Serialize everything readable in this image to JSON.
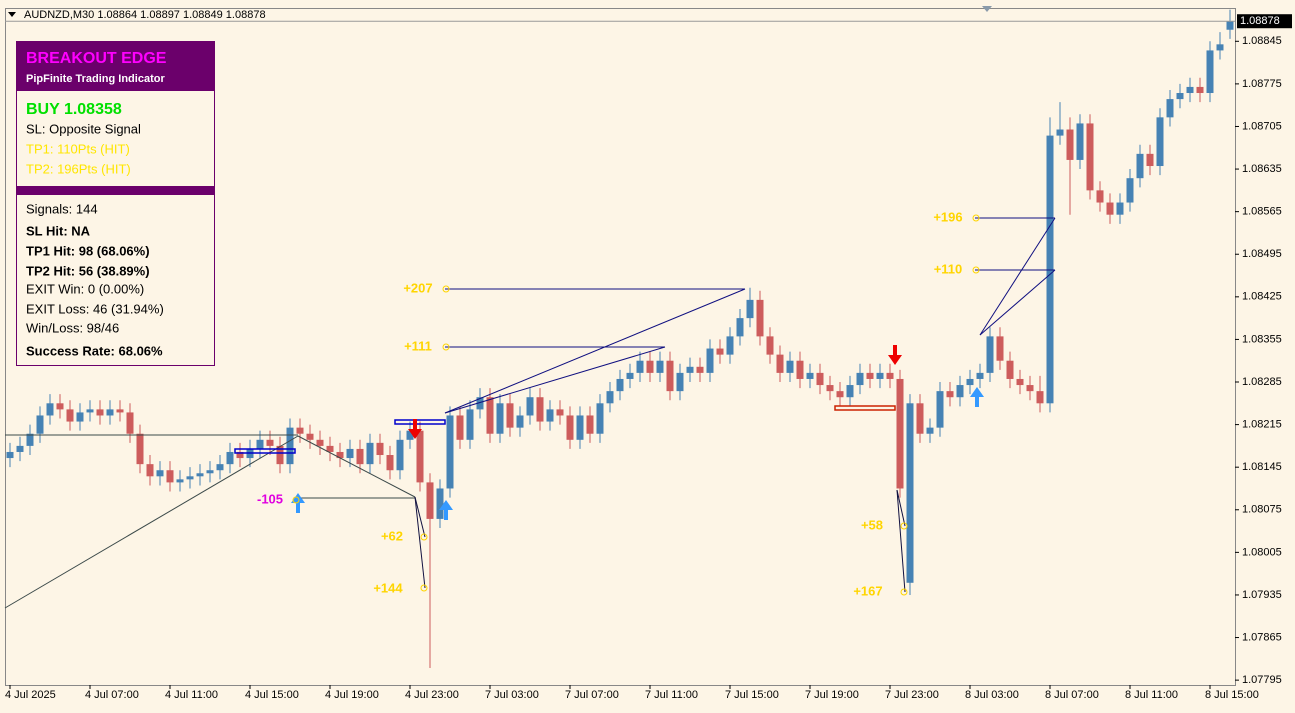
{
  "chart_data": {
    "type": "candlestick",
    "title": "AUDNZD,M30  1.08864 1.08897 1.08849 1.08878",
    "last_price": 1.08878,
    "up_color": "#4682b4",
    "down_color": "#cd5c5c",
    "ylim": [
      1.07787,
      1.0888
    ],
    "yticks": [
      1.08845,
      1.08775,
      1.08705,
      1.08635,
      1.08565,
      1.08495,
      1.08425,
      1.08355,
      1.08285,
      1.08215,
      1.08145,
      1.08075,
      1.08005,
      1.07935,
      1.07865,
      1.07795
    ],
    "categories": [
      "4 Jul 2025",
      null,
      null,
      null,
      null,
      null,
      null,
      null,
      "4 Jul 07:00",
      null,
      null,
      null,
      null,
      null,
      null,
      null,
      "4 Jul 11:00",
      null,
      null,
      null,
      null,
      null,
      null,
      null,
      "4 Jul 15:00",
      null,
      null,
      null,
      null,
      null,
      null,
      null,
      "4 Jul 19:00",
      null,
      null,
      null,
      null,
      null,
      null,
      null,
      "4 Jul 23:00",
      null,
      null,
      null,
      null,
      null,
      null,
      null,
      "7 Jul 03:00",
      null,
      null,
      null,
      null,
      null,
      null,
      null,
      "7 Jul 07:00",
      null,
      null,
      null,
      null,
      null,
      null,
      null,
      "7 Jul 11:00",
      null,
      null,
      null,
      null,
      null,
      null,
      null,
      "7 Jul 15:00",
      null,
      null,
      null,
      null,
      null,
      null,
      null,
      "7 Jul 19:00",
      null,
      null,
      null,
      null,
      null,
      null,
      null,
      "7 Jul 23:00",
      null,
      null,
      null,
      null,
      null,
      null,
      null,
      "8 Jul 03:00",
      null,
      null,
      null,
      null,
      null,
      null,
      null,
      "8 Jul 07:00",
      null,
      null,
      null,
      null,
      null,
      null,
      null,
      "8 Jul 11:00",
      null,
      null,
      null,
      null,
      null,
      null,
      null,
      "8 Jul 15:00",
      null,
      null
    ],
    "ohlc": [
      [
        1.0816,
        1.08185,
        1.08145,
        1.0817
      ],
      [
        1.0817,
        1.08195,
        1.08155,
        1.0818
      ],
      [
        1.0818,
        1.08215,
        1.08165,
        1.082
      ],
      [
        1.082,
        1.08245,
        1.08185,
        1.0823
      ],
      [
        1.0823,
        1.08265,
        1.08215,
        1.0825
      ],
      [
        1.0825,
        1.08265,
        1.08225,
        1.0824
      ],
      [
        1.0824,
        1.08255,
        1.08205,
        1.0822
      ],
      [
        1.0822,
        1.0825,
        1.08205,
        1.08235
      ],
      [
        1.08235,
        1.08255,
        1.0822,
        1.0824
      ],
      [
        1.0824,
        1.08255,
        1.08215,
        1.0823
      ],
      [
        1.0823,
        1.08255,
        1.08215,
        1.0824
      ],
      [
        1.0824,
        1.08255,
        1.0822,
        1.08235
      ],
      [
        1.08235,
        1.0825,
        1.08185,
        1.082
      ],
      [
        1.082,
        1.08215,
        1.08135,
        1.0815
      ],
      [
        1.0815,
        1.08165,
        1.08115,
        1.0813
      ],
      [
        1.0813,
        1.08155,
        1.08115,
        1.0814
      ],
      [
        1.0814,
        1.08155,
        1.08105,
        1.0812
      ],
      [
        1.0812,
        1.0814,
        1.08105,
        1.08125
      ],
      [
        1.08125,
        1.08145,
        1.0811,
        1.0813
      ],
      [
        1.0813,
        1.0815,
        1.08115,
        1.08135
      ],
      [
        1.08135,
        1.08155,
        1.0812,
        1.0814
      ],
      [
        1.0814,
        1.08165,
        1.08125,
        1.0815
      ],
      [
        1.0815,
        1.08185,
        1.08135,
        1.0817
      ],
      [
        1.0817,
        1.08185,
        1.08145,
        1.0816
      ],
      [
        1.0816,
        1.0819,
        1.08145,
        1.08175
      ],
      [
        1.08175,
        1.08205,
        1.0816,
        1.0819
      ],
      [
        1.0819,
        1.08205,
        1.08165,
        1.0818
      ],
      [
        1.0818,
        1.08195,
        1.08135,
        1.0815
      ],
      [
        1.0815,
        1.08225,
        1.08135,
        1.0821
      ],
      [
        1.0821,
        1.08225,
        1.08185,
        1.082
      ],
      [
        1.082,
        1.08215,
        1.08175,
        1.0819
      ],
      [
        1.0819,
        1.08205,
        1.08165,
        1.0818
      ],
      [
        1.0818,
        1.08195,
        1.08155,
        1.0817
      ],
      [
        1.0817,
        1.08185,
        1.08145,
        1.0816
      ],
      [
        1.0816,
        1.0819,
        1.08145,
        1.08175
      ],
      [
        1.08175,
        1.0819,
        1.08135,
        1.0815
      ],
      [
        1.0815,
        1.082,
        1.08135,
        1.08185
      ],
      [
        1.08185,
        1.082,
        1.0815,
        1.08165
      ],
      [
        1.08165,
        1.0818,
        1.08125,
        1.0814
      ],
      [
        1.0814,
        1.08205,
        1.08125,
        1.0819
      ],
      [
        1.0819,
        1.0822,
        1.08175,
        1.08205
      ],
      [
        1.08205,
        1.0822,
        1.08105,
        1.0812
      ],
      [
        1.0812,
        1.08135,
        1.07815,
        1.0806
      ],
      [
        1.0806,
        1.08125,
        1.08045,
        1.0811
      ],
      [
        1.0811,
        1.08245,
        1.08095,
        1.0823
      ],
      [
        1.0823,
        1.08245,
        1.08175,
        1.0819
      ],
      [
        1.0819,
        1.08255,
        1.08175,
        1.0824
      ],
      [
        1.0824,
        1.08275,
        1.08225,
        1.0826
      ],
      [
        1.0826,
        1.08275,
        1.08185,
        1.082
      ],
      [
        1.082,
        1.08265,
        1.08185,
        1.0825
      ],
      [
        1.0825,
        1.08265,
        1.08195,
        1.0821
      ],
      [
        1.0821,
        1.08245,
        1.08195,
        1.0823
      ],
      [
        1.0823,
        1.08275,
        1.08215,
        1.0826
      ],
      [
        1.0826,
        1.08275,
        1.08205,
        1.0822
      ],
      [
        1.0822,
        1.08255,
        1.08205,
        1.0824
      ],
      [
        1.0824,
        1.08255,
        1.08215,
        1.0823
      ],
      [
        1.0823,
        1.08245,
        1.08175,
        1.0819
      ],
      [
        1.0819,
        1.08245,
        1.08175,
        1.0823
      ],
      [
        1.0823,
        1.08245,
        1.08185,
        1.082
      ],
      [
        1.082,
        1.08265,
        1.08185,
        1.0825
      ],
      [
        1.0825,
        1.08285,
        1.08235,
        1.0827
      ],
      [
        1.0827,
        1.08305,
        1.08255,
        1.0829
      ],
      [
        1.0829,
        1.08315,
        1.08275,
        1.083
      ],
      [
        1.083,
        1.08335,
        1.08285,
        1.0832
      ],
      [
        1.0832,
        1.08335,
        1.08285,
        1.083
      ],
      [
        1.083,
        1.08335,
        1.08285,
        1.0832
      ],
      [
        1.0832,
        1.08335,
        1.08255,
        1.0827
      ],
      [
        1.0827,
        1.08315,
        1.08255,
        1.083
      ],
      [
        1.083,
        1.08325,
        1.08285,
        1.0831
      ],
      [
        1.0831,
        1.08325,
        1.08285,
        1.083
      ],
      [
        1.083,
        1.08355,
        1.08285,
        1.0834
      ],
      [
        1.0834,
        1.08355,
        1.08315,
        1.0833
      ],
      [
        1.0833,
        1.08375,
        1.08315,
        1.0836
      ],
      [
        1.0836,
        1.08405,
        1.08345,
        1.0839
      ],
      [
        1.0839,
        1.0844,
        1.08375,
        1.0842
      ],
      [
        1.0842,
        1.08435,
        1.08345,
        1.0836
      ],
      [
        1.0836,
        1.08375,
        1.08315,
        1.0833
      ],
      [
        1.0833,
        1.08345,
        1.08285,
        1.083
      ],
      [
        1.083,
        1.08335,
        1.08285,
        1.0832
      ],
      [
        1.0832,
        1.08335,
        1.08275,
        1.0829
      ],
      [
        1.0829,
        1.08315,
        1.08275,
        1.083
      ],
      [
        1.083,
        1.08315,
        1.08265,
        1.0828
      ],
      [
        1.0828,
        1.08295,
        1.08255,
        1.0827
      ],
      [
        1.0827,
        1.08285,
        1.08245,
        1.0826
      ],
      [
        1.0826,
        1.08295,
        1.08245,
        1.0828
      ],
      [
        1.0828,
        1.08315,
        1.08265,
        1.083
      ],
      [
        1.083,
        1.08315,
        1.08275,
        1.0829
      ],
      [
        1.0829,
        1.08315,
        1.08275,
        1.083
      ],
      [
        1.083,
        1.08315,
        1.08275,
        1.0829
      ],
      [
        1.0829,
        1.08305,
        1.08095,
        1.0811
      ],
      [
        1.07955,
        1.08265,
        1.07935,
        1.0825
      ],
      [
        1.0825,
        1.08265,
        1.08185,
        1.082
      ],
      [
        1.082,
        1.08225,
        1.08185,
        1.0821
      ],
      [
        1.0821,
        1.08285,
        1.08195,
        1.0827
      ],
      [
        1.0827,
        1.08285,
        1.08245,
        1.0826
      ],
      [
        1.0826,
        1.08295,
        1.08245,
        1.0828
      ],
      [
        1.0828,
        1.08305,
        1.08265,
        1.0829
      ],
      [
        1.0829,
        1.08315,
        1.08275,
        1.083
      ],
      [
        1.083,
        1.08375,
        1.08285,
        1.0836
      ],
      [
        1.0836,
        1.08375,
        1.08305,
        1.0832
      ],
      [
        1.0832,
        1.08335,
        1.08275,
        1.0829
      ],
      [
        1.0829,
        1.08305,
        1.08265,
        1.0828
      ],
      [
        1.0828,
        1.08295,
        1.08255,
        1.0827
      ],
      [
        1.0827,
        1.08295,
        1.08235,
        1.0825
      ],
      [
        1.0825,
        1.0872,
        1.08235,
        1.0869
      ],
      [
        1.0869,
        1.08745,
        1.08675,
        1.087
      ],
      [
        1.087,
        1.0872,
        1.0856,
        1.0865
      ],
      [
        1.0865,
        1.08725,
        1.08635,
        1.0871
      ],
      [
        1.0871,
        1.08725,
        1.08585,
        1.086
      ],
      [
        1.086,
        1.08615,
        1.08565,
        1.0858
      ],
      [
        1.0858,
        1.08595,
        1.08545,
        1.0856
      ],
      [
        1.0856,
        1.08595,
        1.08545,
        1.0858
      ],
      [
        1.0858,
        1.08635,
        1.08565,
        1.0862
      ],
      [
        1.0862,
        1.08675,
        1.08605,
        1.0866
      ],
      [
        1.0866,
        1.08675,
        1.08625,
        1.0864
      ],
      [
        1.0864,
        1.08735,
        1.08625,
        1.0872
      ],
      [
        1.0872,
        1.08765,
        1.08705,
        1.0875
      ],
      [
        1.0875,
        1.08775,
        1.08735,
        1.0876
      ],
      [
        1.0876,
        1.08785,
        1.08745,
        1.0877
      ],
      [
        1.0877,
        1.08785,
        1.08745,
        1.0876
      ],
      [
        1.0876,
        1.08845,
        1.08745,
        1.0883
      ],
      [
        1.0883,
        1.0886,
        1.08815,
        1.0884
      ],
      [
        1.08864,
        1.08897,
        1.08849,
        1.08878
      ]
    ],
    "annotations": [
      "+207",
      "+111",
      "-105",
      "+62",
      "+144",
      "+58",
      "+167",
      "+196",
      "+110"
    ]
  },
  "panel": {
    "title": "BREAKOUT EDGE",
    "subtitle": "PipFinite Trading Indicator",
    "signal": "BUY 1.08358",
    "sl": "SL: Opposite Signal",
    "tp1": "TP1: 110Pts (HIT)",
    "tp2": "TP2: 196Pts (HIT)",
    "stats": [
      "Signals: 144",
      "SL Hit: NA",
      "TP1 Hit: 98 (68.06%)",
      "TP2 Hit: 56 (38.89%)",
      "EXIT Win: 0 (0.00%)",
      "EXIT Loss: 46 (31.94%)",
      "Win/Loss: 98/46",
      "Success Rate: 68.06%"
    ]
  }
}
